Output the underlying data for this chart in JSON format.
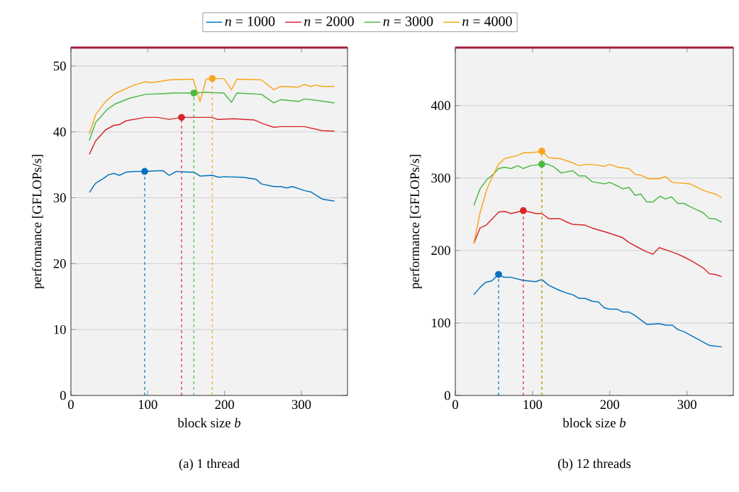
{
  "chart_data": [
    {
      "type": "line",
      "title": "(a) 1 thread",
      "xlabel": "block size *b*",
      "ylabel": "performance [GFLOPs/s]",
      "xlim": [
        0,
        360
      ],
      "ylim": [
        0,
        52.8
      ],
      "xticks": [
        0,
        100,
        200,
        300
      ],
      "yticks": [
        0,
        10,
        20,
        30,
        40,
        50
      ],
      "grid": "y",
      "legend": "top",
      "ref_lines": [
        {
          "axis": "y",
          "value": 52.8,
          "color": "#a51d3b"
        }
      ],
      "series": [
        {
          "name": "*n* = 1000",
          "color": "#0072bd",
          "x": [
            24,
            32,
            42,
            49,
            56,
            63,
            72,
            82,
            96,
            113,
            120,
            128,
            137,
            153,
            160,
            168,
            184,
            193,
            199,
            224,
            241,
            248,
            264,
            273,
            281,
            288,
            304,
            312,
            327,
            343
          ],
          "values": [
            30.8,
            32.2,
            32.9,
            33.5,
            33.7,
            33.4,
            33.9,
            34.0,
            34.0,
            34.1,
            34.1,
            33.4,
            34.0,
            33.9,
            33.9,
            33.3,
            33.4,
            33.1,
            33.2,
            33.1,
            32.8,
            32.1,
            31.7,
            31.7,
            31.5,
            31.7,
            31.1,
            30.9,
            29.8,
            29.5
          ]
        },
        {
          "name": "*n* = 2000",
          "color": "#d7262b",
          "x": [
            24,
            32,
            45,
            56,
            63,
            72,
            97,
            113,
            128,
            144,
            159,
            183,
            191,
            211,
            239,
            251,
            264,
            273,
            304,
            327,
            343
          ],
          "values": [
            36.6,
            38.6,
            40.3,
            41.0,
            41.1,
            41.7,
            42.2,
            42.2,
            41.9,
            42.2,
            42.2,
            42.2,
            41.9,
            42.0,
            41.8,
            41.2,
            40.7,
            40.8,
            40.8,
            40.2,
            40.1
          ]
        },
        {
          "name": "*n* = 3000",
          "color": "#4cb944",
          "x": [
            24,
            32,
            48,
            57,
            76,
            97,
            119,
            134,
            160,
            174,
            199,
            209,
            216,
            248,
            264,
            273,
            296,
            304,
            319,
            343
          ],
          "values": [
            38.7,
            41.4,
            43.5,
            44.2,
            45.1,
            45.7,
            45.8,
            45.9,
            45.9,
            46.0,
            45.9,
            44.5,
            45.9,
            45.7,
            44.4,
            44.9,
            44.6,
            45.0,
            44.8,
            44.4
          ]
        },
        {
          "name": "*n* = 4000",
          "color": "#f8a51d",
          "x": [
            24,
            32,
            45,
            57,
            82,
            97,
            105,
            119,
            128,
            159,
            168,
            176,
            184,
            199,
            209,
            216,
            248,
            264,
            273,
            296,
            304,
            312,
            319,
            327,
            343
          ],
          "values": [
            39.7,
            42.6,
            44.6,
            45.8,
            47.1,
            47.6,
            47.5,
            47.7,
            47.9,
            48.0,
            44.6,
            48.0,
            48.1,
            48.1,
            46.4,
            48.0,
            47.9,
            46.4,
            46.9,
            46.8,
            47.2,
            46.9,
            47.1,
            46.9,
            46.9
          ]
        },
        {
          "type": "lollipop",
          "color": "#0072bd",
          "marker": "circle",
          "line_style": "dashed",
          "x": [
            96
          ],
          "values": [
            34.0
          ]
        },
        {
          "type": "lollipop",
          "color": "#d7262b",
          "marker": "circle",
          "line_style": "dashed",
          "x": [
            144
          ],
          "values": [
            42.2
          ]
        },
        {
          "type": "lollipop",
          "color": "#4cb944",
          "marker": "circle",
          "line_style": "dashed",
          "x": [
            160
          ],
          "values": [
            45.9
          ]
        },
        {
          "type": "lollipop",
          "color": "#f8a51d",
          "marker": "circle",
          "line_style": "dashed",
          "x": [
            184
          ],
          "values": [
            48.1
          ]
        }
      ]
    },
    {
      "type": "line",
      "title": "(b) 12 threads",
      "xlabel": "block size *b*",
      "ylabel": "performance [GFLOPs/s]",
      "xlim": [
        0,
        360
      ],
      "ylim": [
        0,
        480
      ],
      "xticks": [
        0,
        100,
        200,
        300
      ],
      "yticks": [
        0,
        100,
        200,
        300,
        400
      ],
      "grid": "y",
      "ref_lines": [
        {
          "axis": "y",
          "value": 480,
          "color": "#a51d3b"
        }
      ],
      "series": [
        {
          "color": "#0072bd",
          "x": [
            24,
            32,
            39,
            47,
            56,
            63,
            72,
            87,
            104,
            112,
            121,
            135,
            145,
            152,
            160,
            168,
            177,
            185,
            193,
            200,
            210,
            217,
            225,
            233,
            248,
            264,
            273,
            281,
            288,
            296,
            310,
            329,
            345
          ],
          "values": [
            139,
            149,
            156,
            158,
            167,
            163,
            163,
            159,
            157,
            160,
            152,
            145,
            141,
            139,
            134,
            134,
            130,
            129,
            121,
            119,
            119,
            115,
            115,
            110,
            98,
            99,
            97,
            97,
            91,
            88,
            80,
            69,
            67
          ]
        },
        {
          "color": "#d7262b",
          "x": [
            24,
            32,
            40,
            49,
            56,
            64,
            72,
            80,
            88,
            97,
            104,
            112,
            121,
            135,
            145,
            152,
            168,
            177,
            196,
            216,
            225,
            237,
            248,
            256,
            264,
            278,
            288,
            296,
            307,
            321,
            329,
            336,
            345
          ],
          "values": [
            210,
            231,
            235,
            245,
            253,
            254,
            251,
            253,
            255,
            253,
            251,
            251,
            244,
            244,
            239,
            236,
            235,
            231,
            225,
            218,
            211,
            204,
            198,
            195,
            204,
            199,
            195,
            191,
            185,
            176,
            168,
            167,
            164
          ]
        },
        {
          "color": "#4cb944",
          "x": [
            24,
            32,
            41,
            49,
            56,
            64,
            72,
            81,
            88,
            97,
            112,
            120,
            128,
            137,
            152,
            160,
            168,
            177,
            193,
            200,
            210,
            217,
            225,
            233,
            240,
            248,
            256,
            265,
            272,
            280,
            288,
            296,
            305,
            321,
            329,
            336,
            345
          ],
          "values": [
            262,
            285,
            298,
            305,
            313,
            315,
            313,
            317,
            313,
            317,
            319,
            319,
            315,
            307,
            310,
            303,
            303,
            295,
            292,
            294,
            289,
            285,
            287,
            276,
            278,
            267,
            267,
            275,
            271,
            274,
            265,
            265,
            260,
            252,
            244,
            244,
            239
          ]
        },
        {
          "color": "#f8a51d",
          "x": [
            24,
            32,
            41,
            49,
            56,
            64,
            80,
            89,
            100,
            112,
            121,
            135,
            152,
            160,
            169,
            183,
            193,
            200,
            210,
            225,
            233,
            240,
            250,
            264,
            272,
            281,
            304,
            321,
            336,
            345
          ],
          "values": [
            210,
            252,
            285,
            304,
            319,
            327,
            331,
            335,
            335,
            337,
            328,
            327,
            321,
            317,
            319,
            318,
            316,
            319,
            315,
            313,
            305,
            304,
            299,
            299,
            302,
            294,
            292,
            283,
            278,
            273
          ]
        },
        {
          "type": "lollipop",
          "color": "#0072bd",
          "marker": "circle",
          "line_style": "dashed",
          "x": [
            56
          ],
          "values": [
            167
          ]
        },
        {
          "type": "lollipop",
          "color": "#d7262b",
          "marker": "circle",
          "line_style": "dashed",
          "x": [
            88
          ],
          "values": [
            255
          ]
        },
        {
          "type": "lollipop",
          "color": "#4cb944",
          "marker": "circle",
          "line_style": "dashed",
          "x": [
            112
          ],
          "values": [
            319
          ]
        },
        {
          "type": "lollipop",
          "color": "#f8a51d",
          "marker": "circle",
          "line_style": "dashed",
          "x": [
            112
          ],
          "values": [
            337
          ]
        }
      ]
    }
  ]
}
